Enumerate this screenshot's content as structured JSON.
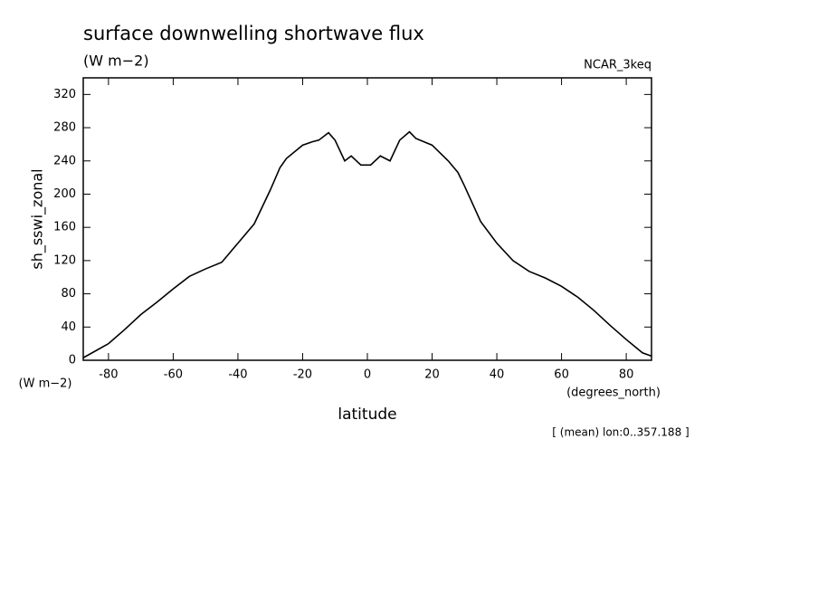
{
  "chart_data": {
    "type": "line",
    "title": "surface downwelling shortwave flux",
    "units": "(W m−2)",
    "model": "NCAR_3keq",
    "ylabel": "sh_sswi_zonal",
    "yunits": "(W m−2)",
    "xlabel": "latitude",
    "xunits": "(degrees_north)",
    "footnote": "[ (mean) lon:0..357.188 ]",
    "x": [
      -87.8,
      -80,
      -75,
      -70,
      -65,
      -60,
      -55,
      -50,
      -45,
      -40,
      -35,
      -30,
      -27,
      -25,
      -20,
      -17,
      -15,
      -12,
      -10,
      -7,
      -5,
      -2,
      1,
      4,
      7,
      10,
      13,
      15,
      20,
      25,
      28,
      30,
      35,
      40,
      45,
      50,
      55,
      60,
      65,
      70,
      75,
      80,
      85,
      87.8
    ],
    "series": [
      {
        "color": "#000000",
        "values": [
          3,
          20,
          37,
          55,
          70,
          86,
          101,
          110,
          118,
          141,
          164,
          205,
          232,
          243,
          259,
          263,
          265,
          274,
          265,
          240,
          246,
          235,
          235,
          246,
          240,
          265,
          275,
          267,
          259,
          240,
          226,
          210,
          167,
          141,
          120,
          107,
          99,
          89,
          76,
          60,
          42,
          25,
          9,
          5
        ]
      }
    ],
    "xlim": [
      -87.8,
      87.8
    ],
    "ylim": [
      0,
      340
    ],
    "xticks": [
      -80,
      -60,
      -40,
      -20,
      0,
      20,
      40,
      60,
      80
    ],
    "yticks": [
      0,
      40,
      80,
      120,
      160,
      200,
      240,
      280,
      320
    ]
  }
}
